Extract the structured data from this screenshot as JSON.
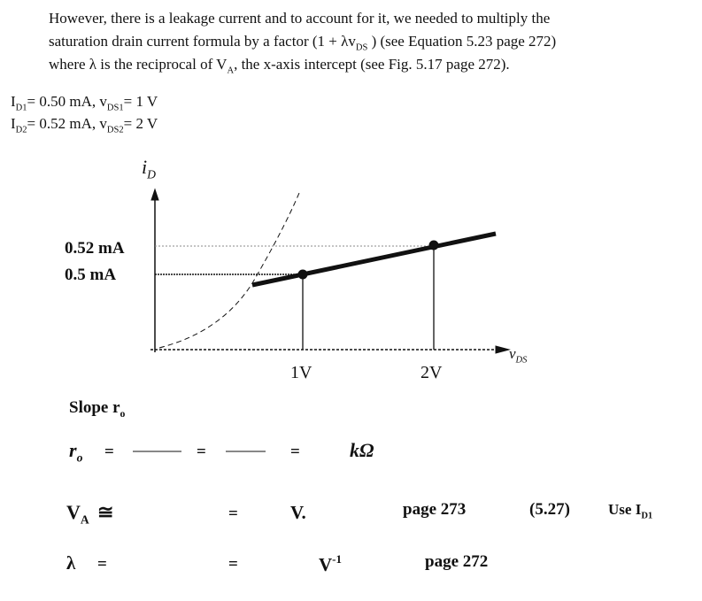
{
  "intro": {
    "lines": [
      [
        "However, there is a leakage current and to account for it, we needed to multiply the"
      ],
      [
        "saturation drain current formula by a factor (1 + λv",
        "DS",
        " ) (see Equation 5.23 page 272)"
      ],
      [
        "where λ is the reciprocal of V",
        "A",
        ", the x-axis intercept (see Fig. 5.17 page 272)."
      ]
    ]
  },
  "given": [
    [
      "I",
      "D1",
      "= 0.50 mA, v",
      "DS1",
      "= 1 V"
    ],
    [
      "I",
      "D2",
      "= 0.52 mA, v",
      "DS2",
      "= 2 V"
    ]
  ],
  "figure": {
    "y_axis_label": [
      "i",
      "D"
    ],
    "x_axis_label": [
      "v",
      "DS"
    ],
    "y_labels": [
      "0.52 mA",
      "0.5 mA"
    ],
    "x_labels": [
      "1V",
      "2V"
    ]
  },
  "slope": [
    "Slope r",
    "o"
  ],
  "rows": {
    "ro": {
      "symbol": [
        "r",
        "o"
      ],
      "equals": [
        "=",
        "=",
        "="
      ],
      "unit": "kΩ"
    },
    "va": {
      "symbol": [
        "V",
        "A"
      ],
      "approx": "≅",
      "equals": "=",
      "unit": "V.",
      "page": "page 273",
      "eq": "(5.27)",
      "note": [
        "Use I",
        "D1"
      ]
    },
    "lambda": {
      "symbol": "λ",
      "equals": [
        "=",
        "="
      ],
      "unit": "V",
      "exp": "-1",
      "page": "page 272"
    }
  }
}
